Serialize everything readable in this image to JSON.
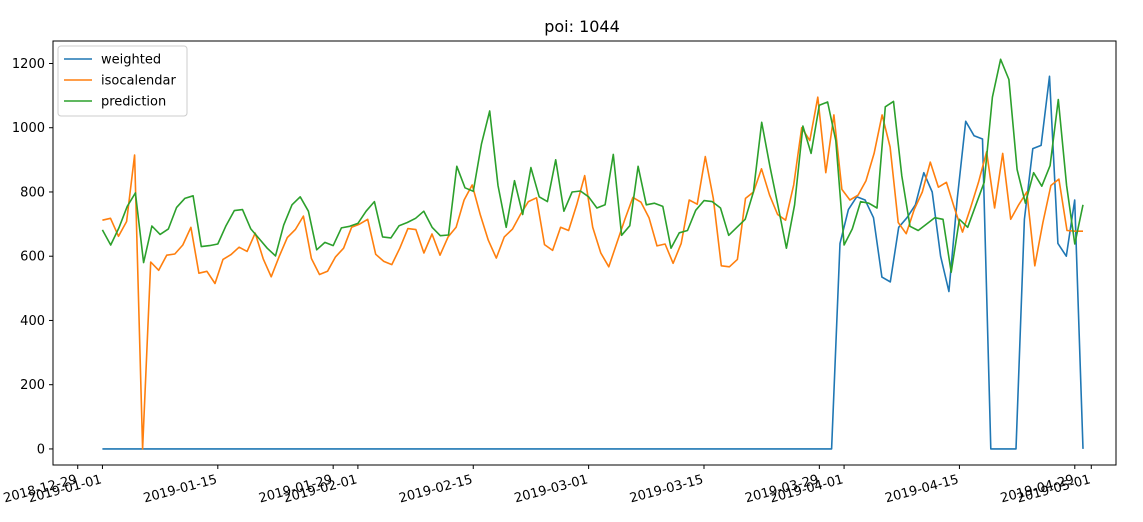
{
  "chart_data": {
    "type": "line",
    "title": "poi: 1044",
    "xlabel": "",
    "ylabel": "",
    "legend_position": "top-left",
    "grid": false,
    "xlim": [
      "2018-12-26",
      "2019-05-04"
    ],
    "ylim": [
      -50,
      1270
    ],
    "x_start": "2019-01-01",
    "x_end": "2019-04-30",
    "x_tick_labels": [
      "2018-12-29",
      "2019-01-01",
      "2019-01-15",
      "2019-01-29",
      "2019-02-01",
      "2019-02-15",
      "2019-03-01",
      "2019-03-15",
      "2019-03-29",
      "2019-04-01",
      "2019-04-15",
      "2019-04-29",
      "2019-05-01"
    ],
    "y_ticks": [
      0,
      200,
      400,
      600,
      800,
      1000,
      1200
    ],
    "series": [
      {
        "name": "weighted",
        "color": "#1f77b4",
        "values": [
          0,
          0,
          0,
          0,
          0,
          0,
          0,
          0,
          0,
          0,
          0,
          0,
          0,
          0,
          0,
          0,
          0,
          0,
          0,
          0,
          0,
          0,
          0,
          0,
          0,
          0,
          0,
          0,
          0,
          0,
          0,
          0,
          0,
          0,
          0,
          0,
          0,
          0,
          0,
          0,
          0,
          0,
          0,
          0,
          0,
          0,
          0,
          0,
          0,
          0,
          0,
          0,
          0,
          0,
          0,
          0,
          0,
          0,
          0,
          0,
          0,
          0,
          0,
          0,
          0,
          0,
          0,
          0,
          0,
          0,
          0,
          0,
          0,
          0,
          0,
          0,
          0,
          0,
          0,
          0,
          0,
          0,
          0,
          0,
          0,
          0,
          0,
          0,
          640,
          745,
          785,
          775,
          720,
          535,
          520,
          690,
          720,
          760,
          860,
          800,
          600,
          490,
          780,
          1020,
          975,
          965,
          0,
          0,
          0,
          0,
          715,
          935,
          945,
          1160,
          640,
          600,
          775,
          0
        ]
      },
      {
        "name": "isocalendar",
        "color": "#ff7f0e",
        "values": [
          712,
          718,
          662,
          708,
          915,
          0,
          582,
          556,
          603,
          607,
          635,
          690,
          547,
          553,
          515,
          590,
          605,
          628,
          615,
          672,
          592,
          536,
          600,
          658,
          683,
          725,
          593,
          543,
          553,
          598,
          625,
          690,
          700,
          715,
          606,
          584,
          574,
          625,
          686,
          683,
          610,
          669,
          603,
          660,
          690,
          775,
          822,
          730,
          650,
          594,
          660,
          684,
          730,
          770,
          782,
          636,
          618,
          690,
          680,
          760,
          851,
          690,
          610,
          567,
          642,
          715,
          783,
          768,
          720,
          632,
          638,
          578,
          640,
          775,
          762,
          910,
          780,
          570,
          567,
          590,
          780,
          800,
          872,
          790,
          730,
          712,
          822,
          1000,
          960,
          1095,
          860,
          1040,
          808,
          775,
          790,
          835,
          920,
          1040,
          940,
          705,
          670,
          745,
          800,
          893,
          815,
          830,
          750,
          675,
          750,
          830,
          925,
          750,
          920,
          715,
          760,
          800,
          570,
          705,
          820,
          840,
          680,
          678,
          678
        ]
      },
      {
        "name": "prediction",
        "color": "#2ca02c",
        "values": [
          682,
          635,
          688,
          755,
          797,
          580,
          694,
          668,
          685,
          752,
          780,
          788,
          630,
          633,
          638,
          695,
          742,
          745,
          685,
          655,
          625,
          601,
          697,
          760,
          785,
          740,
          620,
          643,
          633,
          688,
          693,
          702,
          740,
          770,
          660,
          657,
          695,
          705,
          718,
          740,
          690,
          664,
          666,
          880,
          813,
          802,
          950,
          1052,
          820,
          690,
          835,
          730,
          876,
          785,
          770,
          900,
          740,
          800,
          803,
          785,
          750,
          760,
          917,
          665,
          695,
          880,
          760,
          765,
          755,
          625,
          673,
          680,
          743,
          773,
          770,
          750,
          665,
          690,
          715,
          800,
          1017,
          880,
          755,
          625,
          760,
          1005,
          920,
          1070,
          1080,
          960,
          635,
          685,
          770,
          765,
          750,
          1065,
          1082,
          850,
          693,
          680,
          700,
          720,
          715,
          550,
          715,
          690,
          760,
          830,
          1095,
          1213,
          1150,
          870,
          765,
          860,
          818,
          882,
          1088,
          820,
          638,
          760
        ]
      }
    ]
  }
}
